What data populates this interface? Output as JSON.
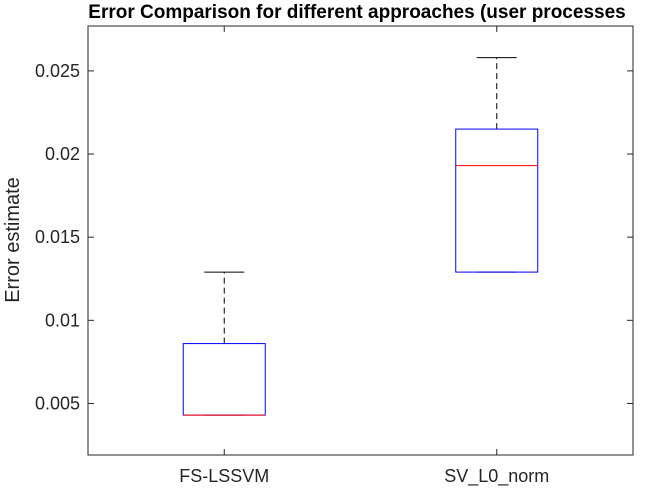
{
  "chart_data": {
    "type": "box",
    "title": "Error Comparison for different approaches (user processes",
    "xlabel": "",
    "ylabel": "Error estimate",
    "ylim": [
      0.0019,
      0.0277
    ],
    "yticks": [
      "0.005",
      "0.01",
      "0.015",
      "0.02",
      "0.025"
    ],
    "grid": false,
    "categories": [
      "FS-LSSVM",
      "SV_L0_norm"
    ],
    "boxes": [
      {
        "category": "FS-LSSVM",
        "whisker_low": 0.0043,
        "q1": 0.0043,
        "median": 0.0043,
        "q3": 0.0086,
        "whisker_high": 0.0129
      },
      {
        "category": "SV_L0_norm",
        "whisker_low": 0.0129,
        "q1": 0.0129,
        "median": 0.0193,
        "q3": 0.0215,
        "whisker_high": 0.0258
      }
    ],
    "colors": {
      "box": "#0000ff",
      "median": "#ff0000",
      "whisker": "#000000",
      "axes": "#262626"
    }
  }
}
